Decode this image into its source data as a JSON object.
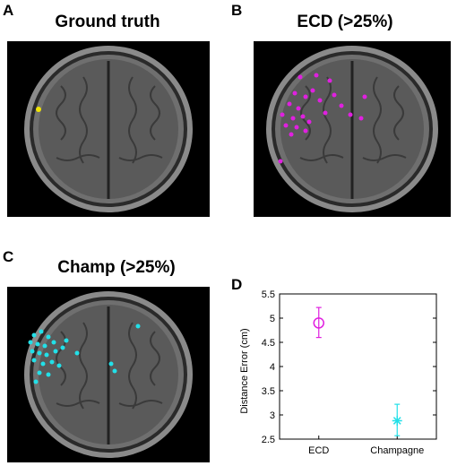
{
  "panels": {
    "a": {
      "letter": "A",
      "title": "Ground  truth"
    },
    "b": {
      "letter": "B",
      "title": "ECD (>25%)"
    },
    "c": {
      "letter": "C",
      "title": "Champ (>25%)"
    },
    "d": {
      "letter": "D"
    }
  },
  "colors": {
    "ground_truth": "#f2e600",
    "ecd": "#e020e0",
    "champagne": "#22e0e8"
  },
  "chart_data": {
    "type": "scatter",
    "title": "",
    "xlabel": "",
    "ylabel": "Distance Error (cm)",
    "categories": [
      "ECD",
      "Champagne"
    ],
    "ylim": [
      2.5,
      5.5
    ],
    "yticks": [
      "2.5",
      "3",
      "3.5",
      "4",
      "4.5",
      "5",
      "5.5"
    ],
    "series": [
      {
        "category": "ECD",
        "mean": 4.9,
        "err_low": 4.6,
        "err_high": 5.22,
        "marker": "circle",
        "color": "#e020e0"
      },
      {
        "category": "Champagne",
        "mean": 2.88,
        "err_low": 2.57,
        "err_high": 3.22,
        "marker": "asterisk",
        "color": "#22e0e8"
      }
    ]
  }
}
